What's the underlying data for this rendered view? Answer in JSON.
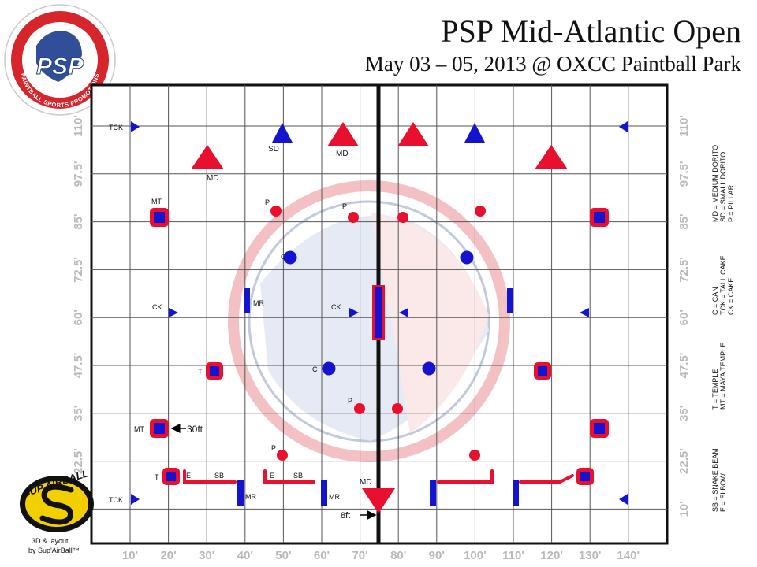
{
  "header": {
    "title": "PSP Mid-Atlantic Open",
    "subtitle": "May 03 – 05, 2013 @ OXCC Paintball Park"
  },
  "logo": {
    "letters": "PSP",
    "ring_text": "PAINTBALL SPORTS PROMOTIONS",
    "colors": [
      "#d6262c",
      "#1f3f8f"
    ]
  },
  "brand": {
    "name": "SUP AIRBALL",
    "credit_line1": "3D & layout",
    "credit_line2": "by Sup'AirBall™"
  },
  "axes": {
    "x_ticks": [
      "10'",
      "20'",
      "30'",
      "40'",
      "50'",
      "60'",
      "70'",
      "80'",
      "90'",
      "100'",
      "110'",
      "120'",
      "130'",
      "140'"
    ],
    "y_ticks": [
      "10'",
      "22.5'",
      "35'",
      "47.5'",
      "60'",
      "72.5'",
      "85'",
      "97.5'",
      "110'"
    ]
  },
  "legend": [
    [
      "MD = MEDIUM DORITO",
      "SD = SMALL DORITO",
      "P = PILLAR"
    ],
    [
      "C = CAN",
      "TCK = TALL CAKE",
      "CK = CAKE"
    ],
    [
      "T = TEMPLE",
      "MT = MAYA TEMPLE"
    ],
    [
      "SB = SNAKE BEAM",
      "E = ELBOW"
    ]
  ],
  "labels": {
    "tck_top": "TCK",
    "tck_bottom": "TCK",
    "sd": "SD",
    "md_left": "MD",
    "md_center": "MD",
    "md_bottom": "MD",
    "mt_top": "MT",
    "mt_bottom": "MT",
    "p1": "P",
    "p2": "P",
    "p3": "P",
    "p4": "P",
    "c1": "C",
    "c2": "C",
    "ck_left": "CK",
    "ck_center": "CK",
    "mr_top": "MR",
    "mr_b1": "MR",
    "mr_b2": "MR",
    "t1": "T",
    "t2": "T",
    "e1": "E",
    "e2": "E",
    "sb1": "SB",
    "sb2": "SB",
    "dim_30ft": "30ft",
    "dim_8ft": "8ft"
  },
  "colors": {
    "red": "#e8102e",
    "blue": "#1414d0",
    "grid": "#555555",
    "tick_grey": "#b9b9b9"
  }
}
